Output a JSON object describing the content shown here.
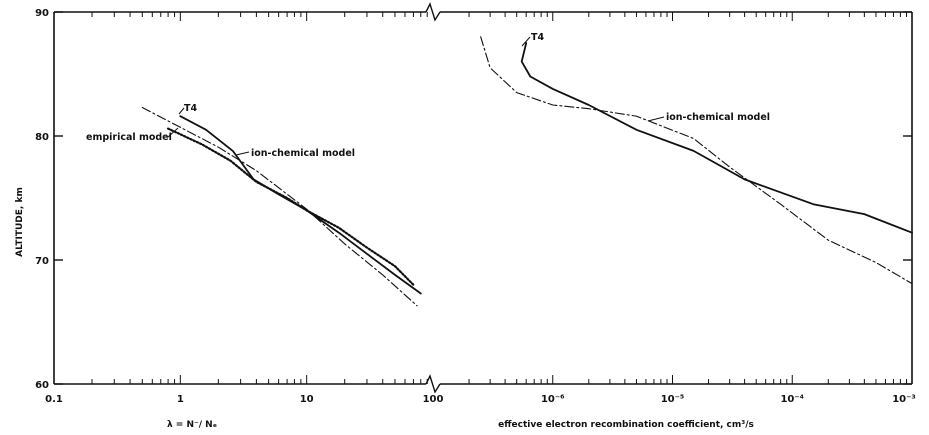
{
  "chart_data": [
    {
      "type": "line",
      "name": "left-panel",
      "xscale": "log",
      "xlim": [
        0.1,
        100
      ],
      "ylim": [
        60,
        90
      ],
      "xticks": [
        0.1,
        1,
        10,
        100
      ],
      "xtick_labels": [
        "0.1",
        "1",
        "10",
        "100"
      ],
      "yticks": [
        60,
        70,
        80,
        90
      ],
      "ytick_labels": [
        "60",
        "70",
        "80",
        "90"
      ],
      "xlabel": "λ = N⁻/ Nₑ",
      "ylabel": "ALTITUDE, km",
      "series": [
        {
          "name": "T4",
          "style": "solid",
          "points": [
            [
              1.0,
              81.6
            ],
            [
              1.6,
              80.5
            ],
            [
              2.6,
              78.8
            ],
            [
              3.8,
              76.5
            ],
            [
              6,
              75.3
            ],
            [
              10,
              74
            ],
            [
              18,
              72.2
            ],
            [
              30,
              70.5
            ],
            [
              50,
              68.8
            ],
            [
              80,
              67.3
            ]
          ]
        },
        {
          "name": "ion-chemical model",
          "style": "dashdot",
          "points": [
            [
              0.5,
              82.3
            ],
            [
              1.0,
              80.7
            ],
            [
              2,
              79.1
            ],
            [
              4,
              77.2
            ],
            [
              10,
              74.1
            ],
            [
              20,
              71.3
            ],
            [
              40,
              68.8
            ],
            [
              75,
              66.3
            ]
          ]
        },
        {
          "name": "empirical model",
          "style": "dotted",
          "points": [
            [
              0.8,
              80.6
            ],
            [
              1.5,
              79.3
            ],
            [
              2.5,
              78
            ],
            [
              4,
              76.3
            ],
            [
              7,
              75
            ],
            [
              10,
              74
            ],
            [
              18,
              72.6
            ],
            [
              30,
              71
            ],
            [
              50,
              69.5
            ],
            [
              70,
              68
            ]
          ]
        }
      ],
      "annotations": [
        "T4",
        "empirical model",
        "ion-chemical model"
      ]
    },
    {
      "type": "line",
      "name": "right-panel",
      "xscale": "log",
      "xlim": [
        1e-07,
        0.001
      ],
      "ylim": [
        60,
        90
      ],
      "xticks": [
        1e-06,
        1e-05,
        0.0001,
        0.001
      ],
      "xtick_labels": [
        "10⁻⁶",
        "10⁻⁵",
        "10⁻⁴",
        "10⁻³"
      ],
      "xlabel": "effective electron recombination coefficient, cm³/s",
      "series": [
        {
          "name": "T4",
          "style": "solid",
          "points": [
            [
              6e-07,
              87.5
            ],
            [
              5.5e-07,
              86
            ],
            [
              6.5e-07,
              84.8
            ],
            [
              1e-06,
              83.8
            ],
            [
              2e-06,
              82.5
            ],
            [
              5e-06,
              80.5
            ],
            [
              1.5e-05,
              78.8
            ],
            [
              4e-05,
              76.5
            ],
            [
              0.00015,
              74.5
            ],
            [
              0.0004,
              73.7
            ],
            [
              0.001,
              72.2
            ]
          ]
        },
        {
          "name": "ion-chemical model",
          "style": "dashdot",
          "points": [
            [
              2.5e-07,
              88
            ],
            [
              3e-07,
              85.5
            ],
            [
              5e-07,
              83.5
            ],
            [
              1e-06,
              82.5
            ],
            [
              2e-06,
              82.2
            ],
            [
              5e-06,
              81.6
            ],
            [
              1.5e-05,
              79.8
            ],
            [
              3e-05,
              77.5
            ],
            [
              8e-05,
              74.5
            ],
            [
              0.0002,
              71.6
            ],
            [
              0.0005,
              69.8
            ],
            [
              0.001,
              68.1
            ]
          ]
        }
      ],
      "annotations": [
        "T4",
        "ion-chemical model"
      ]
    }
  ]
}
